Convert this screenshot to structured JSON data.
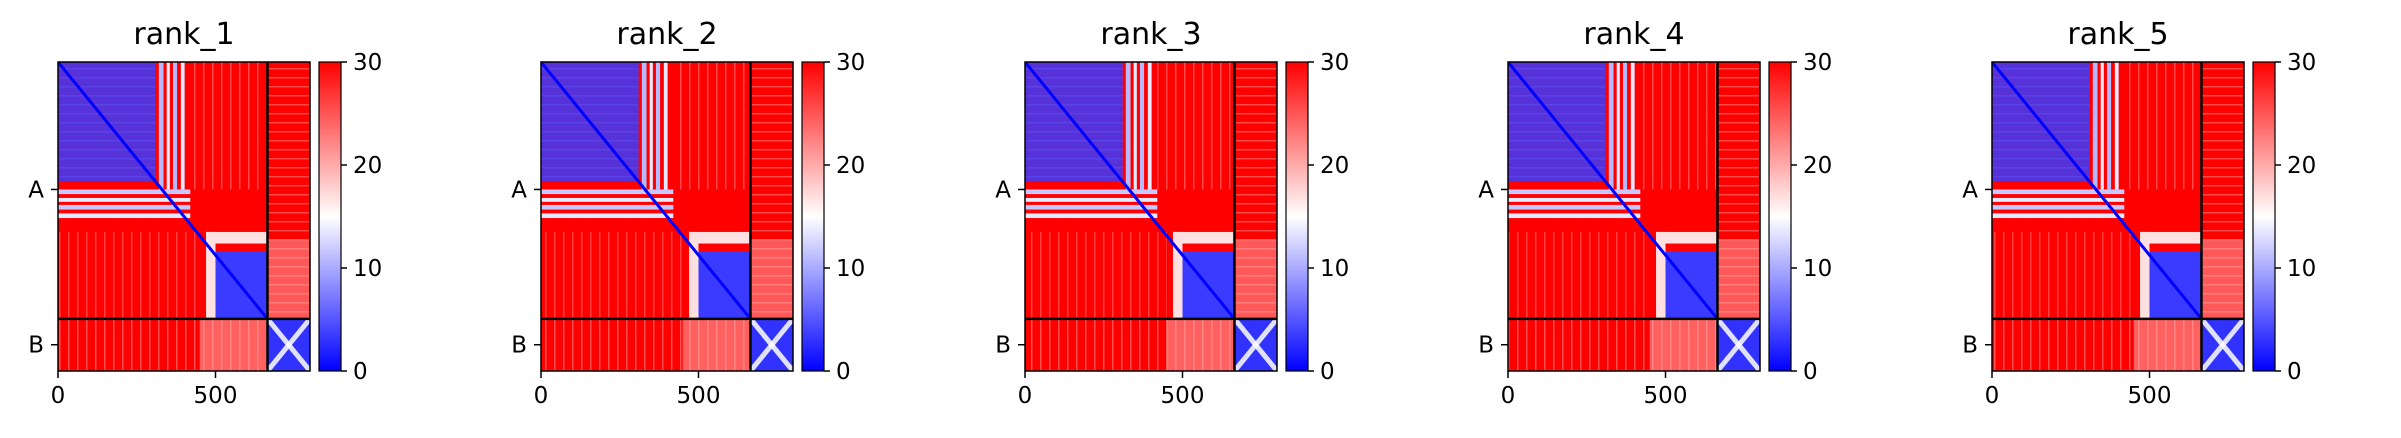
{
  "chart_data": {
    "type": "heatmap",
    "value_range": [
      0,
      30
    ],
    "colormap": [
      "#0000ff",
      "#ffffff",
      "#ff0000"
    ],
    "colorbar_ticks": [
      0,
      10,
      20,
      30
    ],
    "x_ticks": [
      0,
      500
    ],
    "x_range": [
      0,
      800
    ],
    "chain_boundary": 665,
    "chains": [
      {
        "label": "A",
        "center": 330
      },
      {
        "label": "B",
        "center": 732
      }
    ],
    "panels": [
      {
        "title": "rank_1",
        "colorbar_labels": [
          "30",
          "20",
          "10",
          "0"
        ],
        "x_labels": [
          "0",
          "500"
        ],
        "y_labels": [
          "A",
          "B"
        ]
      },
      {
        "title": "rank_2",
        "colorbar_labels": [
          "30",
          "20",
          "10",
          "0"
        ],
        "x_labels": [
          "0",
          "500"
        ],
        "y_labels": [
          "A",
          "B"
        ]
      },
      {
        "title": "rank_3",
        "colorbar_labels": [
          "30",
          "20",
          "10",
          "0"
        ],
        "x_labels": [
          "0",
          "500"
        ],
        "y_labels": [
          "A",
          "B"
        ]
      },
      {
        "title": "rank_4",
        "colorbar_labels": [
          "30",
          "20",
          "10",
          "0"
        ],
        "x_labels": [
          "0",
          "500"
        ],
        "y_labels": [
          "A",
          "B"
        ]
      },
      {
        "title": "rank_5",
        "colorbar_labels": [
          "30",
          "20",
          "10",
          "0"
        ],
        "x_labels": [
          "0",
          "500"
        ],
        "y_labels": [
          "A",
          "B"
        ]
      }
    ]
  }
}
